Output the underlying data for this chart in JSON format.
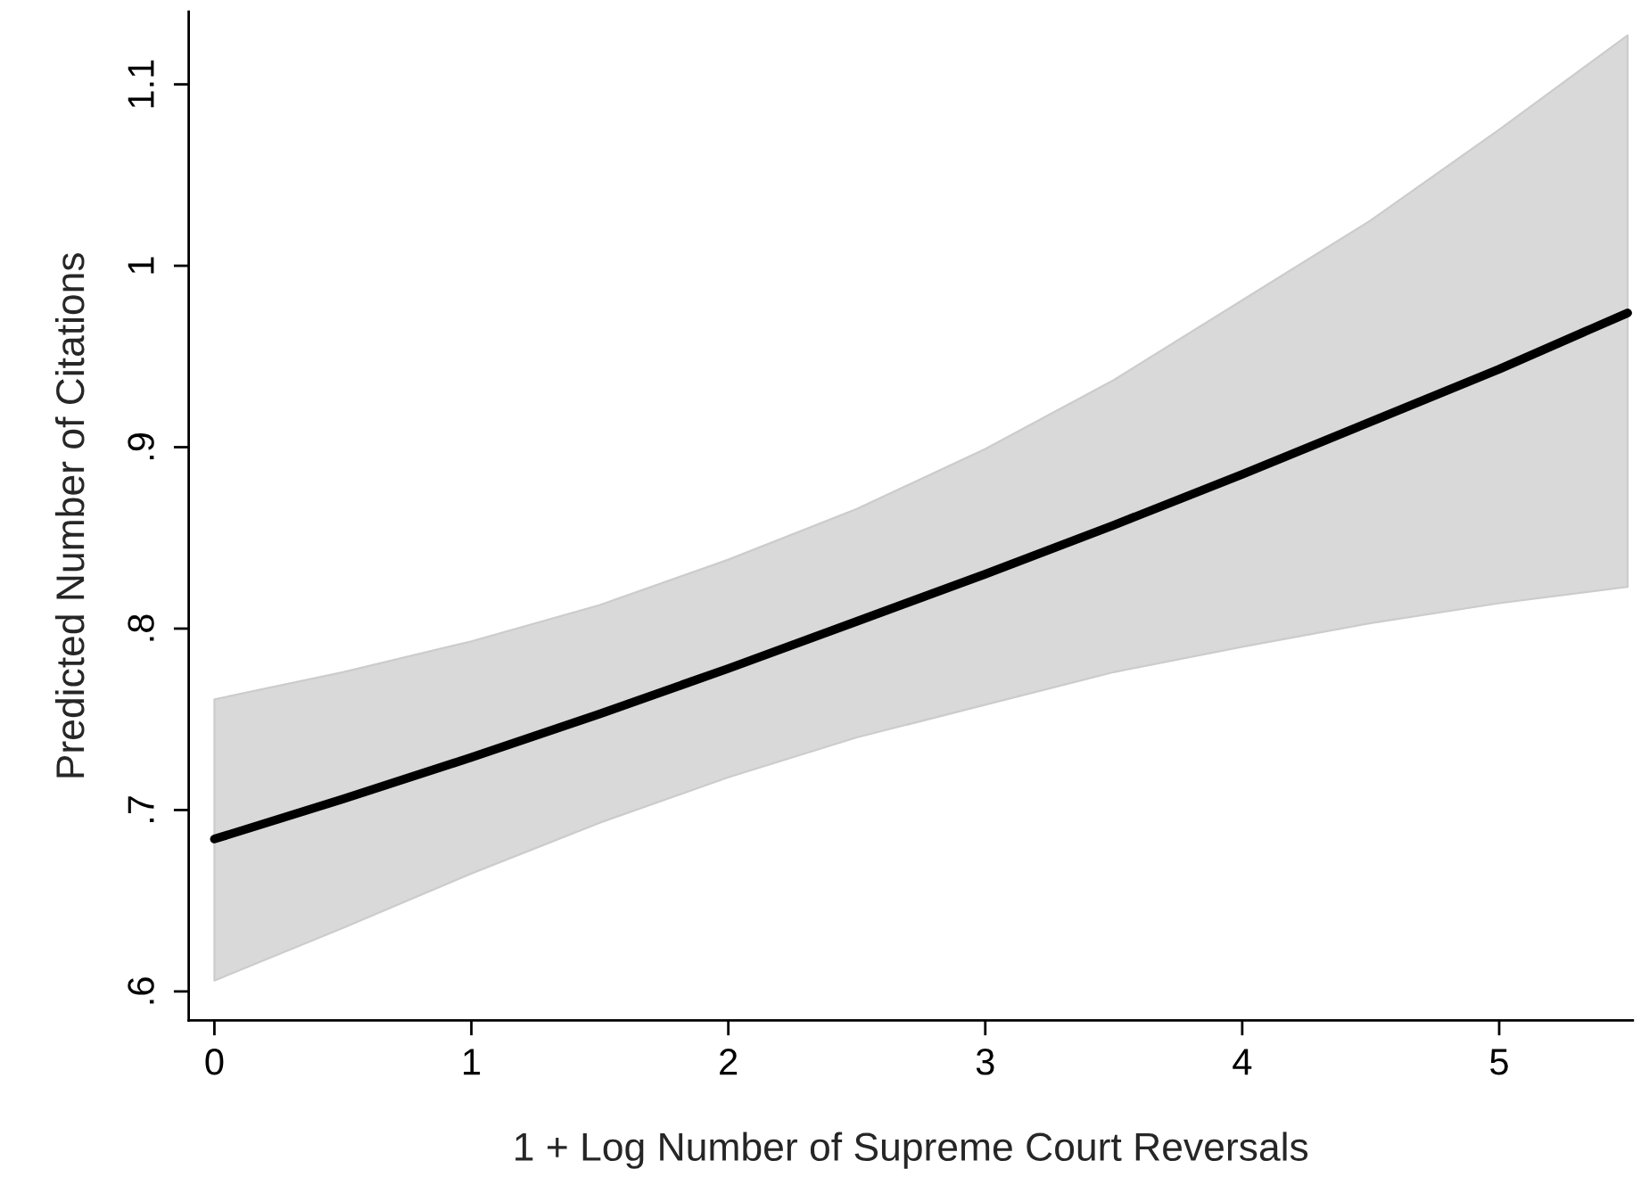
{
  "chart_data": {
    "type": "line",
    "xlabel": "1 + Log Number of Supreme Court Reversals",
    "ylabel": "Predicted Number of Citations",
    "x": [
      0,
      0.5,
      1,
      1.5,
      2,
      2.5,
      3,
      3.5,
      4,
      4.5,
      5,
      5.5
    ],
    "series": [
      {
        "color": "#000000",
        "values": [
          0.684,
          0.706,
          0.729,
          0.753,
          0.778,
          0.804,
          0.83,
          0.857,
          0.885,
          0.914,
          0.943,
          0.974
        ],
        "lower": [
          0.606,
          0.635,
          0.665,
          0.693,
          0.718,
          0.74,
          0.758,
          0.776,
          0.79,
          0.803,
          0.814,
          0.823
        ],
        "upper": [
          0.761,
          0.776,
          0.793,
          0.813,
          0.838,
          0.866,
          0.899,
          0.937,
          0.981,
          1.025,
          1.075,
          1.127
        ]
      }
    ],
    "xlim": [
      -0.1,
      5.52
    ],
    "ylim": [
      0.584,
      1.14
    ],
    "xticks": [
      0,
      1,
      2,
      3,
      4,
      5
    ],
    "yticks": [
      {
        "value": 0.6,
        "label": ".6"
      },
      {
        "value": 0.7,
        "label": ".7"
      },
      {
        "value": 0.8,
        "label": ".8"
      },
      {
        "value": 0.9,
        "label": ".9"
      },
      {
        "value": 1,
        "label": "1"
      },
      {
        "value": 1.1,
        "label": "1.1"
      }
    ],
    "grid": false,
    "legend": false
  }
}
